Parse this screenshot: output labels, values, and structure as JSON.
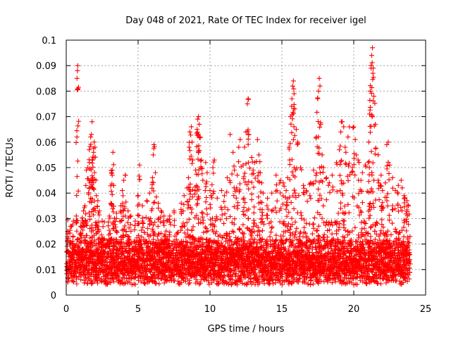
{
  "chart_data": {
    "type": "scatter",
    "title": "Day 048 of 2021, Rate Of TEC Index for receiver igel",
    "xlabel": "GPS time / hours",
    "ylabel": "ROTI / TECUs",
    "xlim": [
      0,
      25
    ],
    "ylim": [
      0,
      0.1
    ],
    "xticks": [
      0,
      5,
      10,
      15,
      20,
      25
    ],
    "yticks": [
      0,
      0.01,
      0.02,
      0.03,
      0.04,
      0.05,
      0.06,
      0.07,
      0.08,
      0.09,
      0.1
    ],
    "xtick_labels": [
      "0",
      "5",
      "10",
      "15",
      "20",
      "25"
    ],
    "ytick_labels": [
      "0",
      "0.01",
      "0.02",
      "0.03",
      "0.04",
      "0.05",
      "0.06",
      "0.07",
      "0.08",
      "0.09",
      "0.1"
    ],
    "grid": true,
    "marker": "+",
    "series_color": "#ff0000",
    "baseline": {
      "x_range": [
        0,
        23.9
      ],
      "typical_min": 0.004,
      "typical_max": 0.022,
      "points_per_hour": 120
    },
    "series": [
      {
        "name": "ROTI",
        "points": [
          [
            0.1,
            0.025
          ],
          [
            0.3,
            0.027
          ],
          [
            0.5,
            0.029
          ],
          [
            0.7,
            0.031
          ],
          [
            0.75,
            0.085
          ],
          [
            0.78,
            0.088
          ],
          [
            0.8,
            0.09
          ],
          [
            1.0,
            0.027
          ],
          [
            1.2,
            0.033
          ],
          [
            1.3,
            0.035
          ],
          [
            1.4,
            0.049
          ],
          [
            1.5,
            0.05
          ],
          [
            1.6,
            0.052
          ],
          [
            1.6,
            0.057
          ],
          [
            1.65,
            0.044
          ],
          [
            1.7,
            0.062
          ],
          [
            1.75,
            0.063
          ],
          [
            1.8,
            0.068
          ],
          [
            1.8,
            0.053
          ],
          [
            1.85,
            0.046
          ],
          [
            1.9,
            0.056
          ],
          [
            1.95,
            0.06
          ],
          [
            2.0,
            0.058
          ],
          [
            2.1,
            0.039
          ],
          [
            2.2,
            0.037
          ],
          [
            2.3,
            0.033
          ],
          [
            2.5,
            0.029
          ],
          [
            3.0,
            0.031
          ],
          [
            3.1,
            0.036
          ],
          [
            3.15,
            0.048
          ],
          [
            3.2,
            0.049
          ],
          [
            3.25,
            0.056
          ],
          [
            3.3,
            0.043
          ],
          [
            3.5,
            0.03
          ],
          [
            3.8,
            0.035
          ],
          [
            3.9,
            0.041
          ],
          [
            4.0,
            0.045
          ],
          [
            4.1,
            0.047
          ],
          [
            4.3,
            0.033
          ],
          [
            4.5,
            0.031
          ],
          [
            4.8,
            0.029
          ],
          [
            5.0,
            0.039
          ],
          [
            5.1,
            0.051
          ],
          [
            5.3,
            0.035
          ],
          [
            5.6,
            0.037
          ],
          [
            5.8,
            0.04
          ],
          [
            6.0,
            0.046
          ],
          [
            6.05,
            0.055
          ],
          [
            6.1,
            0.059
          ],
          [
            6.2,
            0.048
          ],
          [
            6.4,
            0.036
          ],
          [
            6.6,
            0.033
          ],
          [
            6.8,
            0.031
          ],
          [
            7.0,
            0.029
          ],
          [
            7.2,
            0.031
          ],
          [
            7.5,
            0.033
          ],
          [
            8.0,
            0.036
          ],
          [
            8.2,
            0.039
          ],
          [
            8.4,
            0.042
          ],
          [
            8.5,
            0.046
          ],
          [
            8.55,
            0.058
          ],
          [
            8.6,
            0.064
          ],
          [
            8.7,
            0.066
          ],
          [
            8.75,
            0.06
          ],
          [
            8.8,
            0.053
          ],
          [
            9.0,
            0.049
          ],
          [
            9.1,
            0.065
          ],
          [
            9.15,
            0.069
          ],
          [
            9.2,
            0.07
          ],
          [
            9.25,
            0.067
          ],
          [
            9.3,
            0.062
          ],
          [
            9.4,
            0.053
          ],
          [
            9.5,
            0.045
          ],
          [
            9.7,
            0.052
          ],
          [
            9.8,
            0.048
          ],
          [
            10.0,
            0.041
          ],
          [
            10.2,
            0.05
          ],
          [
            10.3,
            0.053
          ],
          [
            10.5,
            0.038
          ],
          [
            10.8,
            0.041
          ],
          [
            11.0,
            0.039
          ],
          [
            11.2,
            0.046
          ],
          [
            11.4,
            0.063
          ],
          [
            11.6,
            0.056
          ],
          [
            11.7,
            0.049
          ],
          [
            11.9,
            0.047
          ],
          [
            12.0,
            0.058
          ],
          [
            12.1,
            0.061
          ],
          [
            12.3,
            0.051
          ],
          [
            12.4,
            0.058
          ],
          [
            12.5,
            0.064
          ],
          [
            12.6,
            0.075
          ],
          [
            12.65,
            0.077
          ],
          [
            12.7,
            0.063
          ],
          [
            12.9,
            0.054
          ],
          [
            13.0,
            0.049
          ],
          [
            13.1,
            0.052
          ],
          [
            13.3,
            0.061
          ],
          [
            13.4,
            0.055
          ],
          [
            13.5,
            0.048
          ],
          [
            13.6,
            0.044
          ],
          [
            13.7,
            0.04
          ],
          [
            14.0,
            0.038
          ],
          [
            14.3,
            0.04
          ],
          [
            14.6,
            0.047
          ],
          [
            14.9,
            0.045
          ],
          [
            15.1,
            0.044
          ],
          [
            15.3,
            0.041
          ],
          [
            15.4,
            0.046
          ],
          [
            15.5,
            0.058
          ],
          [
            15.6,
            0.07
          ],
          [
            15.7,
            0.077
          ],
          [
            15.75,
            0.082
          ],
          [
            15.8,
            0.084
          ],
          [
            15.85,
            0.079
          ],
          [
            15.9,
            0.073
          ],
          [
            16.0,
            0.065
          ],
          [
            16.1,
            0.06
          ],
          [
            16.3,
            0.05
          ],
          [
            16.5,
            0.043
          ],
          [
            16.7,
            0.041
          ],
          [
            17.0,
            0.044
          ],
          [
            17.2,
            0.049
          ],
          [
            17.4,
            0.062
          ],
          [
            17.5,
            0.077
          ],
          [
            17.55,
            0.08
          ],
          [
            17.6,
            0.085
          ],
          [
            17.65,
            0.082
          ],
          [
            17.7,
            0.067
          ],
          [
            17.8,
            0.055
          ],
          [
            17.9,
            0.05
          ],
          [
            18.1,
            0.046
          ],
          [
            18.3,
            0.044
          ],
          [
            18.5,
            0.047
          ],
          [
            18.8,
            0.052
          ],
          [
            19.0,
            0.057
          ],
          [
            19.1,
            0.064
          ],
          [
            19.2,
            0.068
          ],
          [
            19.3,
            0.066
          ],
          [
            19.4,
            0.058
          ],
          [
            19.6,
            0.062
          ],
          [
            19.7,
            0.066
          ],
          [
            19.9,
            0.05
          ],
          [
            20.0,
            0.066
          ],
          [
            20.1,
            0.061
          ],
          [
            20.3,
            0.053
          ],
          [
            20.5,
            0.045
          ],
          [
            20.6,
            0.048
          ],
          [
            20.8,
            0.051
          ],
          [
            21.0,
            0.052
          ],
          [
            21.05,
            0.06
          ],
          [
            21.1,
            0.071
          ],
          [
            21.15,
            0.08
          ],
          [
            21.2,
            0.09
          ],
          [
            21.25,
            0.094
          ],
          [
            21.3,
            0.097
          ],
          [
            21.35,
            0.089
          ],
          [
            21.4,
            0.078
          ],
          [
            21.5,
            0.067
          ],
          [
            21.7,
            0.055
          ],
          [
            21.9,
            0.047
          ],
          [
            22.0,
            0.041
          ],
          [
            22.2,
            0.044
          ],
          [
            22.3,
            0.059
          ],
          [
            22.4,
            0.06
          ],
          [
            22.5,
            0.051
          ],
          [
            22.7,
            0.046
          ],
          [
            22.9,
            0.041
          ],
          [
            23.1,
            0.043
          ],
          [
            23.3,
            0.045
          ],
          [
            23.5,
            0.039
          ],
          [
            23.7,
            0.037
          ],
          [
            23.8,
            0.035
          ]
        ]
      }
    ]
  }
}
